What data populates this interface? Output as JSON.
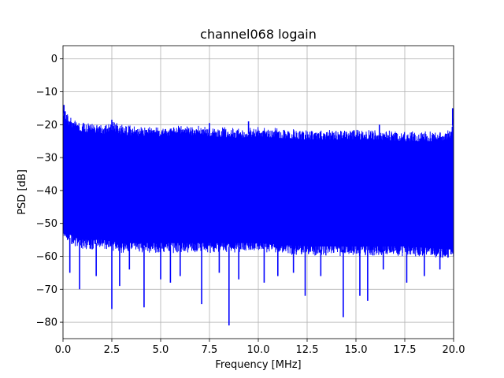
{
  "chart_data": {
    "type": "line",
    "title": "channel068 logain",
    "xlabel": "Frequency [MHz]",
    "ylabel": "PSD [dB]",
    "xlim": [
      0,
      20
    ],
    "ylim": [
      -85,
      4
    ],
    "grid": true,
    "line_color": "#0000ff",
    "xticks": [
      0,
      2.5,
      5,
      7.5,
      10,
      12.5,
      15,
      17.5,
      20
    ],
    "xtick_labels": [
      "0.0",
      "2.5",
      "5.0",
      "7.5",
      "10.0",
      "12.5",
      "15.0",
      "17.5",
      "20.0"
    ],
    "yticks": [
      0,
      -10,
      -20,
      -30,
      -40,
      -50,
      -60,
      -70,
      -80
    ],
    "ytick_labels": [
      "0",
      "−10",
      "−20",
      "−30",
      "−40",
      "−50",
      "−60",
      "−70",
      "−80"
    ],
    "series": [
      {
        "envelope_upper": {
          "x": [
            0,
            0.1,
            0.3,
            0.6,
            1.0,
            1.5,
            2.0,
            2.5,
            3.0,
            4.0,
            5.0,
            6.0,
            7.5,
            9.0,
            10.0,
            11.0,
            12.5,
            14.0,
            15.0,
            16.0,
            17.5,
            19.0,
            19.9,
            20.0
          ],
          "y": [
            -14,
            -15,
            -17,
            -18.5,
            -19,
            -19.5,
            -20,
            -18.5,
            -20,
            -20.5,
            -20.5,
            -20,
            -20.5,
            -21,
            -20.5,
            -21,
            -21.5,
            -21.5,
            -21.5,
            -21.5,
            -22,
            -22,
            -21.5,
            -15
          ]
        },
        "envelope_lower": {
          "x": [
            0,
            0.5,
            1.0,
            2.0,
            3.0,
            5.0,
            7.5,
            10.0,
            12.5,
            15.0,
            17.5,
            20.0
          ],
          "y": [
            -55,
            -57,
            -58,
            -58,
            -59,
            -59,
            -59,
            -59,
            -60,
            -60,
            -60,
            -61
          ]
        },
        "dips": [
          {
            "x": 0.35,
            "y": -65
          },
          {
            "x": 0.85,
            "y": -70
          },
          {
            "x": 1.7,
            "y": -66
          },
          {
            "x": 2.5,
            "y": -76
          },
          {
            "x": 2.9,
            "y": -69
          },
          {
            "x": 3.4,
            "y": -64
          },
          {
            "x": 4.15,
            "y": -75.5
          },
          {
            "x": 5.0,
            "y": -67
          },
          {
            "x": 5.5,
            "y": -68
          },
          {
            "x": 6.0,
            "y": -66
          },
          {
            "x": 7.1,
            "y": -74.5
          },
          {
            "x": 8.0,
            "y": -65
          },
          {
            "x": 8.5,
            "y": -81
          },
          {
            "x": 9.0,
            "y": -67
          },
          {
            "x": 10.3,
            "y": -68
          },
          {
            "x": 11.0,
            "y": -66
          },
          {
            "x": 11.8,
            "y": -65
          },
          {
            "x": 12.4,
            "y": -72
          },
          {
            "x": 13.2,
            "y": -66
          },
          {
            "x": 14.35,
            "y": -78.5
          },
          {
            "x": 15.2,
            "y": -72
          },
          {
            "x": 15.6,
            "y": -73.5
          },
          {
            "x": 16.4,
            "y": -64
          },
          {
            "x": 17.6,
            "y": -68
          },
          {
            "x": 18.5,
            "y": -66
          },
          {
            "x": 19.3,
            "y": -64
          }
        ],
        "peaks": [
          {
            "x": 0.05,
            "y": -14
          },
          {
            "x": 2.5,
            "y": -18.5
          },
          {
            "x": 7.5,
            "y": -19.5
          },
          {
            "x": 9.5,
            "y": -19
          },
          {
            "x": 16.2,
            "y": -20
          },
          {
            "x": 19.95,
            "y": -15
          }
        ]
      }
    ]
  }
}
